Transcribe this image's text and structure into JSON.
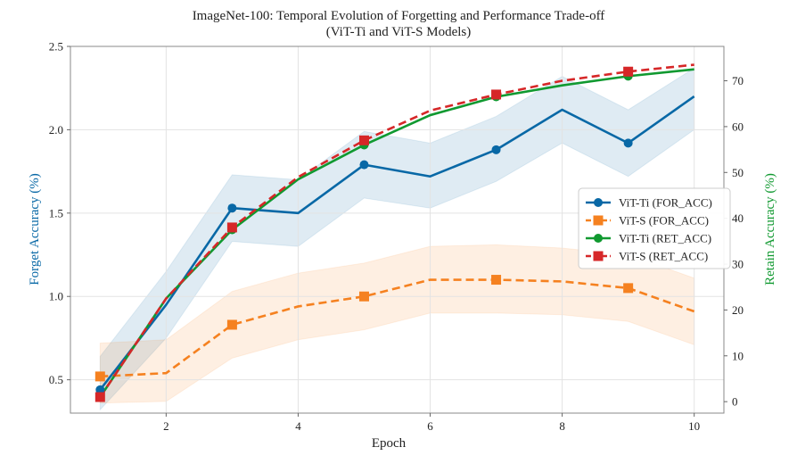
{
  "chart_data": {
    "type": "line",
    "title": "ImageNet-100: Temporal Evolution of Forgetting and Performance Trade-off",
    "subtitle": "(ViT-Ti and ViT-S Models)",
    "xlabel": "Epoch",
    "ylabel_left": "Forget Accuracy (%)",
    "ylabel_right": "Retain Accuracy (%)",
    "xlim": [
      0.55,
      10.45
    ],
    "ylim_left": [
      0.3,
      2.5
    ],
    "ylim_right": [
      -2.5,
      77.5
    ],
    "x_ticks": [
      "2",
      "4",
      "6",
      "8",
      "10"
    ],
    "y_ticks_left": [
      "0.5",
      "1.0",
      "1.5",
      "2.0",
      "2.5"
    ],
    "y_ticks_right": [
      "0",
      "10",
      "20",
      "30",
      "40",
      "50",
      "60",
      "70"
    ],
    "grid": true,
    "legend_position": "center-right",
    "colors": {
      "vit_ti_for": "#0868a6",
      "vit_s_for": "#f58120",
      "vit_ti_ret": "#109930",
      "vit_s_ret": "#d62728",
      "left_axis_label": "#0868a6",
      "right_axis_label": "#109930"
    },
    "x": [
      1,
      2,
      3,
      4,
      5,
      6,
      7,
      8,
      9,
      10
    ],
    "series": [
      {
        "name": "ViT-Ti (FOR_ACC)",
        "axis": "left",
        "style": "solid",
        "marker": "circle",
        "values": [
          0.44,
          0.95,
          1.53,
          1.5,
          1.79,
          1.72,
          1.88,
          2.12,
          1.92,
          2.2
        ],
        "band_lower": [
          0.32,
          0.75,
          1.33,
          1.3,
          1.59,
          1.53,
          1.69,
          1.92,
          1.72,
          2.0
        ],
        "band_upper": [
          0.64,
          1.15,
          1.73,
          1.7,
          1.99,
          1.92,
          2.08,
          2.32,
          2.12,
          2.37
        ],
        "marker_indices": [
          0,
          2,
          4,
          6,
          8
        ]
      },
      {
        "name": "ViT-S (FOR_ACC)",
        "axis": "left",
        "style": "dashed",
        "marker": "square",
        "values": [
          0.52,
          0.54,
          0.83,
          0.94,
          1.0,
          1.1,
          1.1,
          1.09,
          1.05,
          0.91
        ],
        "band_lower": [
          0.36,
          0.37,
          0.63,
          0.74,
          0.8,
          0.9,
          0.9,
          0.89,
          0.85,
          0.71
        ],
        "band_upper": [
          0.72,
          0.74,
          1.03,
          1.14,
          1.2,
          1.3,
          1.31,
          1.29,
          1.25,
          1.11
        ],
        "marker_indices": [
          0,
          2,
          4,
          6,
          8
        ]
      },
      {
        "name": "ViT-Ti (RET_ACC)",
        "axis": "right",
        "style": "solid",
        "marker": "circle",
        "values": [
          1.0,
          22.5,
          37.5,
          48.5,
          56.0,
          62.5,
          66.5,
          69.0,
          71.0,
          72.5
        ],
        "marker_indices": [
          0,
          2,
          4,
          6,
          8
        ]
      },
      {
        "name": "ViT-S (RET_ACC)",
        "axis": "right",
        "style": "dashed",
        "marker": "square",
        "values": [
          1.0,
          22.5,
          38.0,
          49.0,
          57.0,
          63.5,
          67.0,
          70.0,
          72.0,
          73.5
        ],
        "marker_indices": [
          0,
          2,
          4,
          6,
          8
        ]
      }
    ]
  }
}
